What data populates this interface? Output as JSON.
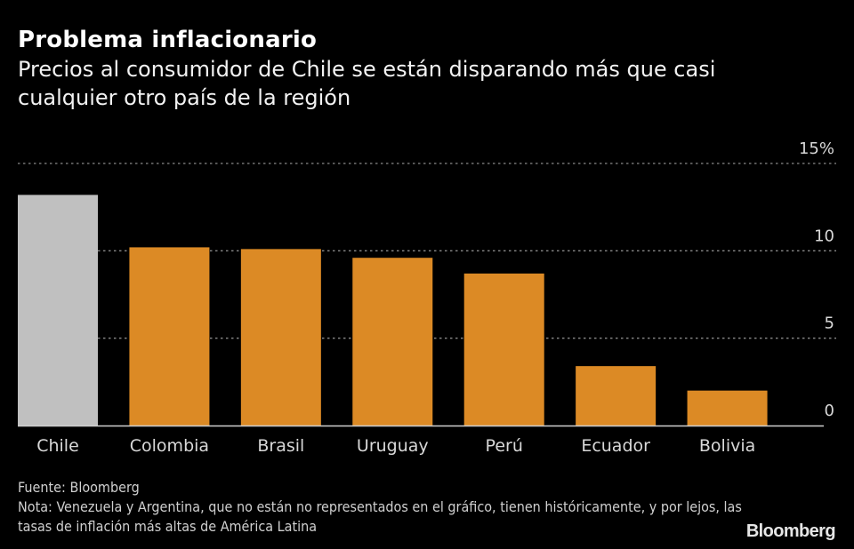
{
  "header": {
    "title": "Problema inflacionario",
    "subtitle": "Precios al consumidor de Chile se están disparando más que casi cualquier otro país de la región"
  },
  "footer": {
    "source": "Fuente: Bloomberg",
    "note": "Nota: Venezuela y Argentina, que no están no representados en el gráfico, tienen históricamente, y por lejos, las tasas de inflación más altas de América Latina",
    "brand": "Bloomberg"
  },
  "colors": {
    "background": "#000000",
    "highlight_bar": "#c0c0c0",
    "bar": "#dc8a25",
    "grid": "#8a8a8a",
    "axis": "#d0d0d0"
  },
  "chart_data": {
    "type": "bar",
    "title": "Problema inflacionario",
    "subtitle": "Precios al consumidor de Chile se están disparando más que casi cualquier otro país de la región",
    "xlabel": "",
    "ylabel": "",
    "categories": [
      "Chile",
      "Colombia",
      "Brasil",
      "Uruguay",
      "Perú",
      "Ecuador",
      "Bolivia"
    ],
    "values": [
      13.2,
      10.2,
      10.1,
      9.6,
      8.7,
      3.4,
      2.0
    ],
    "highlight": "Chile",
    "ylim": [
      0,
      15
    ],
    "yticks": [
      0,
      5,
      10,
      15
    ],
    "ytick_labels": [
      "0",
      "5",
      "10",
      "15%"
    ],
    "y_axis_side": "right",
    "grid": true,
    "grid_style": "dotted"
  }
}
